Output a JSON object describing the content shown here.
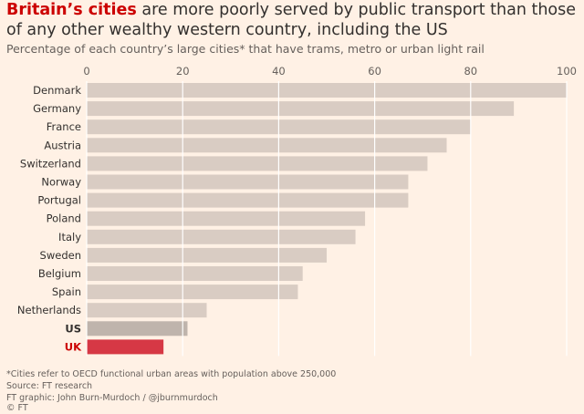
{
  "title_highlight": "Britain’s cities",
  "title_rest": " are more poorly served by public transport than those of any other wealthy western country, including the US",
  "subtitle": "Percentage of each country’s large cities* that have trams, metro or urban light rail",
  "footnote": "*Cities refer to OECD functional urban areas with population above 250,000",
  "source": "Source: FT research",
  "credit": "FT graphic: John Burn-Murdoch / @jburnmurdoch",
  "copyright": "© FT",
  "colors": {
    "bar": "#d9ccc3",
    "us": "#bfb4ac",
    "uk": "#d63845",
    "grid": "#ffffff",
    "label": "#33302e",
    "uk_label": "#cc0000"
  },
  "chart_data": {
    "type": "bar",
    "orientation": "horizontal",
    "categories": [
      "Denmark",
      "Germany",
      "France",
      "Austria",
      "Switzerland",
      "Norway",
      "Portugal",
      "Poland",
      "Italy",
      "Sweden",
      "Belgium",
      "Spain",
      "Netherlands",
      "US",
      "UK"
    ],
    "values": [
      100,
      89,
      80,
      75,
      71,
      67,
      67,
      58,
      56,
      50,
      45,
      44,
      25,
      21,
      16
    ],
    "highlight": {
      "US": "us",
      "UK": "uk"
    },
    "xlim": [
      0,
      100
    ],
    "xticks": [
      0,
      20,
      40,
      60,
      80,
      100
    ],
    "grid": true
  }
}
